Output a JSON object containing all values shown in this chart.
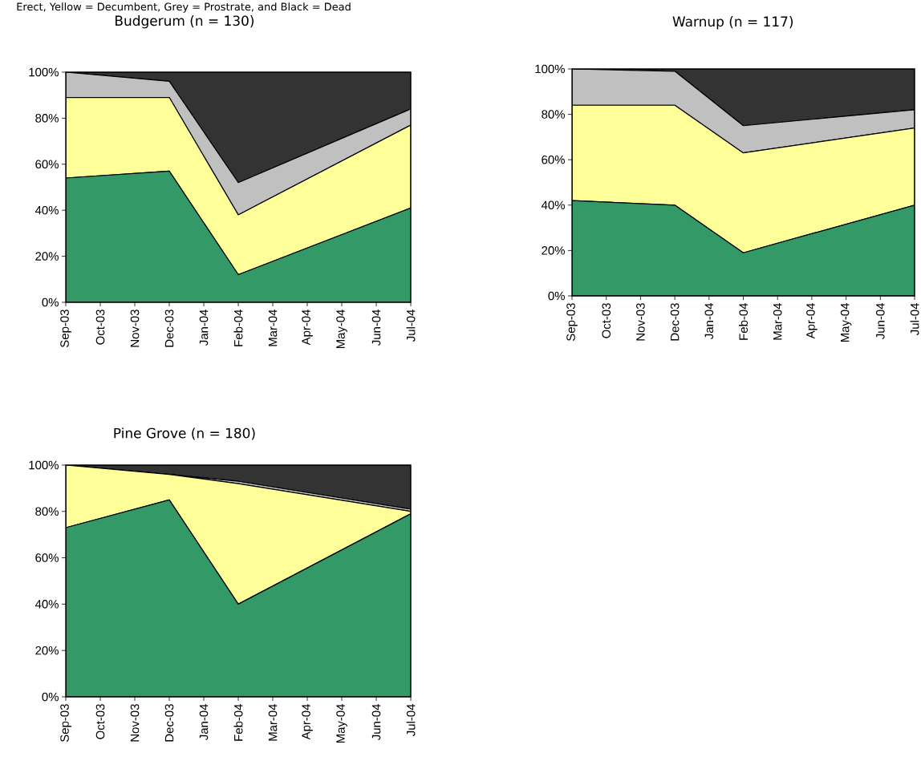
{
  "chart_data": [
    {
      "type": "area",
      "title": "Budgerum (n = 130)",
      "stacked": true,
      "annotations": [
        "Erect, Yellow = Decumbent, Grey = Prostrate, and Black = Dead"
      ],
      "x": [
        "2003-09",
        "2003-12",
        "2004-02",
        "2004-07"
      ],
      "xlim": [
        "2003-09",
        "2004-07"
      ],
      "xticks": [
        {
          "value": "2003-09",
          "label": "Sep-03"
        },
        {
          "value": "2003-10",
          "label": "Oct-03"
        },
        {
          "value": "2003-11",
          "label": "Nov-03"
        },
        {
          "value": "2003-12",
          "label": "Dec-03"
        },
        {
          "value": "2004-01",
          "label": "Jan-04"
        },
        {
          "value": "2004-02",
          "label": "Feb-04"
        },
        {
          "value": "2004-03",
          "label": "Mar-04"
        },
        {
          "value": "2004-04",
          "label": "Apr-04"
        },
        {
          "value": "2004-05",
          "label": "May-04"
        },
        {
          "value": "2004-06",
          "label": "Jun-04"
        },
        {
          "value": "2004-07",
          "label": "Jul-04"
        }
      ],
      "ylim": [
        0,
        100
      ],
      "yticks": [
        {
          "value": 0,
          "label": "0%"
        },
        {
          "value": 20,
          "label": "20%"
        },
        {
          "value": 40,
          "label": "40%"
        },
        {
          "value": 60,
          "label": "60%"
        },
        {
          "value": 80,
          "label": "80%"
        },
        {
          "value": 100,
          "label": "100%"
        }
      ],
      "series": [
        {
          "color": "#339966",
          "values": [
            54,
            57,
            12,
            41
          ]
        },
        {
          "color": "#ffff99",
          "values": [
            35,
            32,
            26,
            36
          ]
        },
        {
          "color": "#c0c0c0",
          "values": [
            11,
            7,
            14,
            7
          ]
        },
        {
          "color": "#333333",
          "values": [
            0,
            4,
            48,
            16
          ]
        }
      ]
    },
    {
      "type": "area",
      "title": "Warnup (n = 117)",
      "stacked": true,
      "x": [
        "2003-09",
        "2003-12",
        "2004-02",
        "2004-07"
      ],
      "xlim": [
        "2003-09",
        "2004-07"
      ],
      "xticks": [
        {
          "value": "2003-09",
          "label": "Sep-03"
        },
        {
          "value": "2003-10",
          "label": "Oct-03"
        },
        {
          "value": "2003-11",
          "label": "Nov-03"
        },
        {
          "value": "2003-12",
          "label": "Dec-03"
        },
        {
          "value": "2004-01",
          "label": "Jan-04"
        },
        {
          "value": "2004-02",
          "label": "Feb-04"
        },
        {
          "value": "2004-03",
          "label": "Mar-04"
        },
        {
          "value": "2004-04",
          "label": "Apr-04"
        },
        {
          "value": "2004-05",
          "label": "May-04"
        },
        {
          "value": "2004-06",
          "label": "Jun-04"
        },
        {
          "value": "2004-07",
          "label": "Jul-04"
        }
      ],
      "ylim": [
        0,
        100
      ],
      "yticks": [
        {
          "value": 0,
          "label": "0%"
        },
        {
          "value": 20,
          "label": "20%"
        },
        {
          "value": 40,
          "label": "40%"
        },
        {
          "value": 60,
          "label": "60%"
        },
        {
          "value": 80,
          "label": "80%"
        },
        {
          "value": 100,
          "label": "100%"
        }
      ],
      "series": [
        {
          "color": "#339966",
          "values": [
            42,
            40,
            19,
            40
          ]
        },
        {
          "color": "#ffff99",
          "values": [
            42,
            44,
            44,
            34
          ]
        },
        {
          "color": "#c0c0c0",
          "values": [
            16,
            15,
            12,
            8
          ]
        },
        {
          "color": "#333333",
          "values": [
            0,
            1,
            25,
            18
          ]
        }
      ]
    },
    {
      "type": "area",
      "title": "Pine Grove (n = 180)",
      "stacked": true,
      "x": [
        "2003-09",
        "2003-12",
        "2004-02",
        "2004-07"
      ],
      "xlim": [
        "2003-09",
        "2004-07"
      ],
      "xticks": [
        {
          "value": "2003-09",
          "label": "Sep-03"
        },
        {
          "value": "2003-10",
          "label": "Oct-03"
        },
        {
          "value": "2003-11",
          "label": "Nov-03"
        },
        {
          "value": "2003-12",
          "label": "Dec-03"
        },
        {
          "value": "2004-01",
          "label": "Jan-04"
        },
        {
          "value": "2004-02",
          "label": "Feb-04"
        },
        {
          "value": "2004-03",
          "label": "Mar-04"
        },
        {
          "value": "2004-04",
          "label": "Apr-04"
        },
        {
          "value": "2004-05",
          "label": "May-04"
        },
        {
          "value": "2004-06",
          "label": "Jun-04"
        },
        {
          "value": "2004-07",
          "label": "Jul-04"
        }
      ],
      "ylim": [
        0,
        100
      ],
      "yticks": [
        {
          "value": 0,
          "label": "0%"
        },
        {
          "value": 20,
          "label": "20%"
        },
        {
          "value": 40,
          "label": "40%"
        },
        {
          "value": 60,
          "label": "60%"
        },
        {
          "value": 80,
          "label": "80%"
        },
        {
          "value": 100,
          "label": "100%"
        }
      ],
      "series": [
        {
          "color": "#339966",
          "values": [
            73,
            85,
            40,
            79
          ]
        },
        {
          "color": "#ffff99",
          "values": [
            27,
            11,
            52,
            1
          ]
        },
        {
          "color": "#c0c0c0",
          "values": [
            0,
            0,
            1,
            1
          ]
        },
        {
          "color": "#333333",
          "values": [
            0,
            4,
            7,
            19
          ]
        }
      ]
    }
  ]
}
